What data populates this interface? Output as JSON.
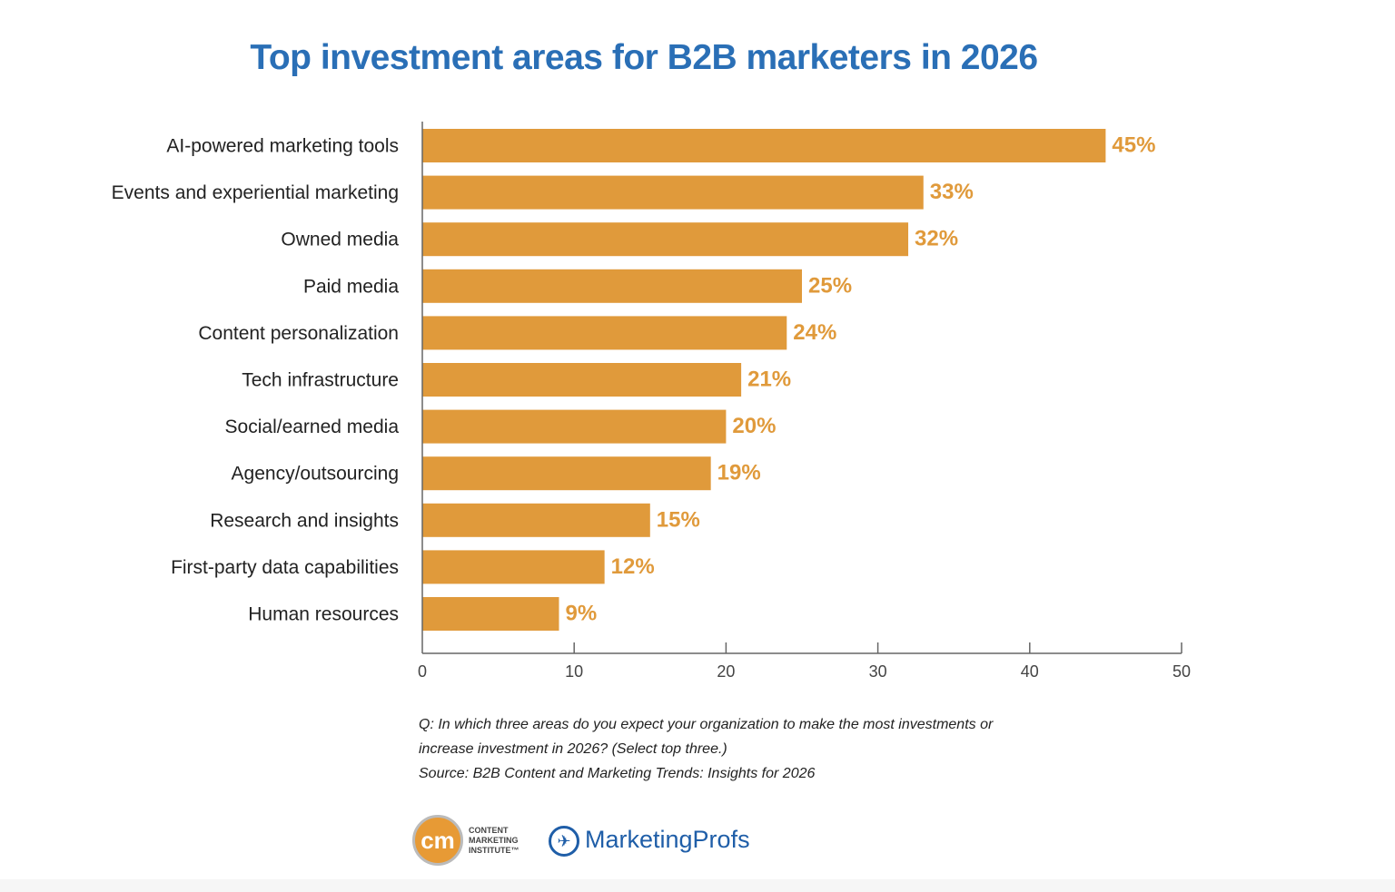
{
  "chart_data": {
    "type": "bar",
    "orientation": "horizontal",
    "title": "Top investment areas for B2B marketers in 2026",
    "categories": [
      "AI-powered marketing tools",
      "Events and experiential marketing",
      "Owned media",
      "Paid media",
      "Content personalization",
      "Tech infrastructure",
      "Social/earned media",
      "Agency/outsourcing",
      "Research and insights",
      "First-party data capabilities",
      "Human resources"
    ],
    "values": [
      45,
      33,
      32,
      25,
      24,
      21,
      20,
      19,
      15,
      12,
      9
    ],
    "value_labels": [
      "45%",
      "33%",
      "32%",
      "25%",
      "24%",
      "21%",
      "20%",
      "19%",
      "15%",
      "12%",
      "9%"
    ],
    "xlim": [
      0,
      50
    ],
    "xticks": [
      "0",
      "10",
      "20",
      "30",
      "40",
      "50"
    ],
    "xlabel": "",
    "ylabel": "",
    "grid": false,
    "bar_color": "#e09a3b",
    "title_color": "#2a6fb6"
  },
  "notes": {
    "question_line1": "Q: In which three areas do you expect your organization to make the most investments or",
    "question_line2": "increase investment in 2026? (Select top three.)",
    "source": "Source: B2B Content and Marketing Trends: Insights for 2026"
  },
  "logos": {
    "cmi_mark": "cm",
    "cmi_line1": "CONTENT",
    "cmi_line2": "MARKETING",
    "cmi_line3": "INSTITUTE™",
    "mp_name": "MarketingProfs"
  }
}
